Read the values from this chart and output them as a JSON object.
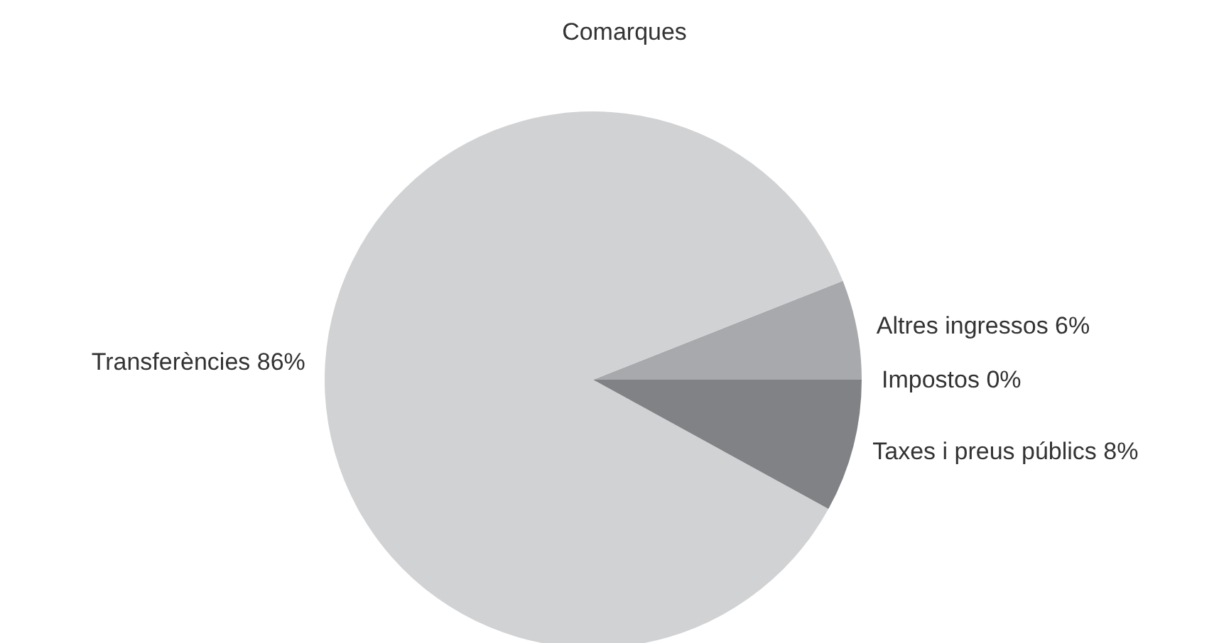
{
  "chart_data": {
    "type": "pie",
    "title": "Comarques",
    "categories": [
      "Impostos",
      "Altres ingressos",
      "Transferències",
      "Taxes i preus públics"
    ],
    "values": [
      0,
      6,
      86,
      8
    ],
    "colors": [
      "#58595b",
      "#a7a9ac",
      "#d1d2d4",
      "#808285"
    ],
    "value_labels": [
      "0%",
      "6%",
      "86%",
      "8%"
    ]
  }
}
